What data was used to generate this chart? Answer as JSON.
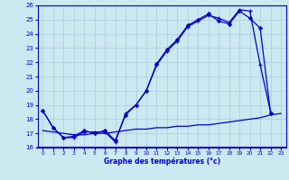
{
  "xlabel": "Graphe des températures (°c)",
  "xlim": [
    -0.5,
    23.5
  ],
  "ylim": [
    16,
    26
  ],
  "yticks": [
    16,
    17,
    18,
    19,
    20,
    21,
    22,
    23,
    24,
    25,
    26
  ],
  "xticks": [
    0,
    1,
    2,
    3,
    4,
    5,
    6,
    7,
    8,
    9,
    10,
    11,
    12,
    13,
    14,
    15,
    16,
    17,
    18,
    19,
    20,
    21,
    22,
    23
  ],
  "bg_color": "#cce8f0",
  "line_color": "#0000cc",
  "grid_color": "#aaccdd",
  "curve1": {
    "x": [
      0,
      1,
      2,
      3,
      4,
      5,
      6,
      7,
      8,
      9,
      10,
      11,
      12,
      13,
      14,
      15,
      16,
      17,
      18,
      19,
      20,
      21,
      22
    ],
    "y": [
      18.6,
      17.4,
      16.7,
      16.7,
      17.1,
      17.1,
      17.1,
      16.4,
      18.4,
      19.0,
      20.0,
      21.8,
      22.8,
      23.5,
      24.5,
      24.9,
      25.3,
      25.1,
      24.8,
      25.7,
      25.6,
      21.8,
      18.5
    ],
    "marker": "+"
  },
  "curve2": {
    "x": [
      0,
      1,
      2,
      3,
      4,
      5,
      6,
      7,
      8,
      9,
      10,
      11,
      12,
      13,
      14,
      15,
      16,
      17,
      18,
      19,
      20,
      21,
      22
    ],
    "y": [
      18.6,
      17.4,
      16.7,
      16.8,
      17.2,
      17.0,
      17.2,
      16.5,
      18.3,
      19.0,
      20.0,
      21.9,
      22.9,
      23.6,
      24.6,
      25.0,
      25.4,
      24.9,
      24.7,
      25.6,
      25.1,
      24.4,
      18.4
    ],
    "marker": "D"
  },
  "curve3": {
    "x": [
      0,
      1,
      2,
      3,
      4,
      5,
      6,
      7,
      8,
      9,
      10,
      11,
      12,
      13,
      14,
      15,
      16,
      17,
      18,
      19,
      20,
      21,
      22,
      23
    ],
    "y": [
      17.2,
      17.1,
      17.0,
      16.9,
      16.9,
      17.0,
      17.0,
      17.1,
      17.2,
      17.3,
      17.3,
      17.4,
      17.4,
      17.5,
      17.5,
      17.6,
      17.6,
      17.7,
      17.8,
      17.9,
      18.0,
      18.1,
      18.3,
      18.4
    ],
    "marker": null
  }
}
